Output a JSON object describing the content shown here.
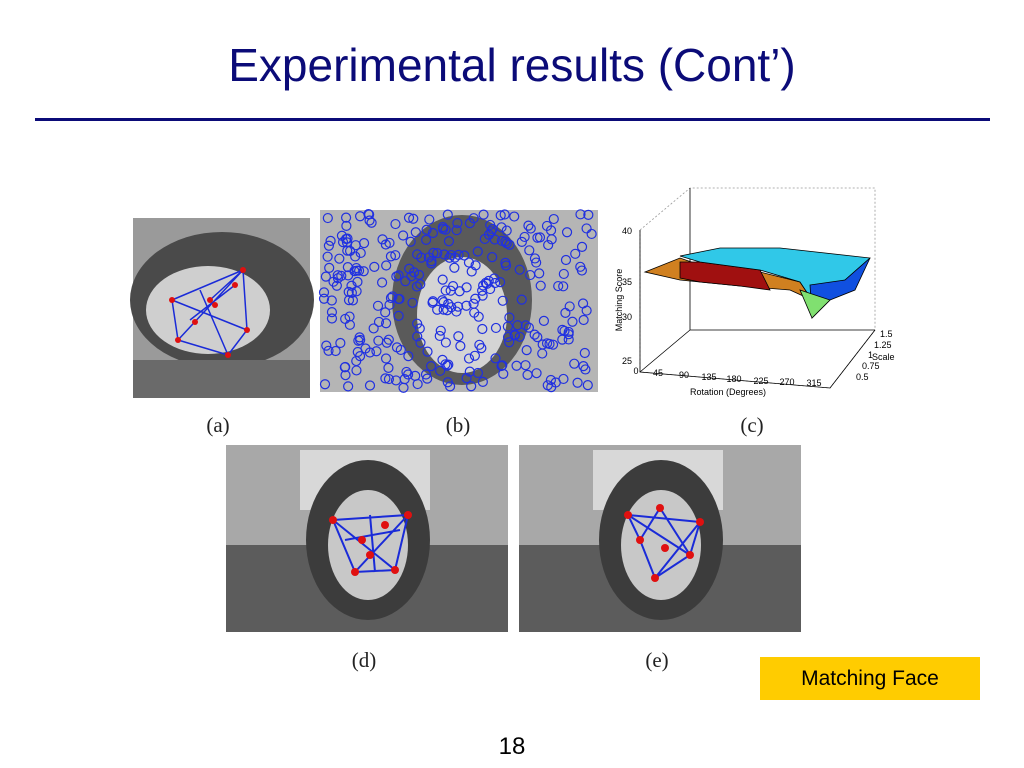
{
  "slide": {
    "title": "Experimental results (Cont’)",
    "callout": "Matching Face",
    "page_number": "18"
  },
  "figures": {
    "captions": [
      "(a)",
      "(b)",
      "(c)",
      "(d)",
      "(e)"
    ]
  },
  "plot_c": {
    "z_axis_label": "Matching Score",
    "z_ticks": [
      "40",
      "35",
      "30",
      "25"
    ],
    "x_axis_label": "Rotation (Degrees)",
    "x_ticks": [
      "0",
      "45",
      "90",
      "135",
      "180",
      "225",
      "270",
      "315"
    ],
    "y_axis_label": "Scale",
    "y_ticks": [
      "1.5",
      "1.25",
      "1",
      "0.75",
      "0.5"
    ]
  }
}
